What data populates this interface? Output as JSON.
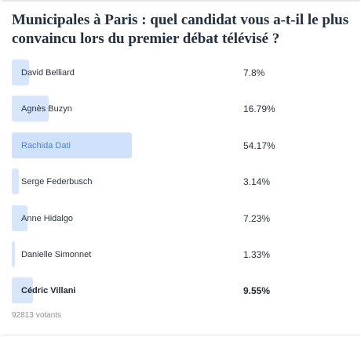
{
  "poll": {
    "title": "Municipales à Paris : quel candidat vous a-t-il le plus convaincu lors du premier débat télévisé ?",
    "options": [
      {
        "label": "David Belliard",
        "percent_text": "7.8%",
        "percent": 7.8
      },
      {
        "label": "Agnès Buzyn",
        "percent_text": "16.79%",
        "percent": 16.79
      },
      {
        "label": "Rachida Dati",
        "percent_text": "54.17%",
        "percent": 54.17
      },
      {
        "label": "Serge Federbusch",
        "percent_text": "3.14%",
        "percent": 3.14
      },
      {
        "label": "Anne Hidalgo",
        "percent_text": "7.23%",
        "percent": 7.23
      },
      {
        "label": "Danielle Simonnet",
        "percent_text": "1.33%",
        "percent": 1.33
      },
      {
        "label": "Cédric Villani",
        "percent_text": "9.55%",
        "percent": 9.55
      }
    ],
    "highlighted_option": "Rachida Dati",
    "selected_option": "Cédric Villani",
    "votes_count": "92813",
    "votes_label": "votants"
  },
  "colors": {
    "bar_fill": "#d7e6fb",
    "winner_text": "#4a86cf",
    "text": "#2b3340",
    "muted": "#8a929c"
  }
}
